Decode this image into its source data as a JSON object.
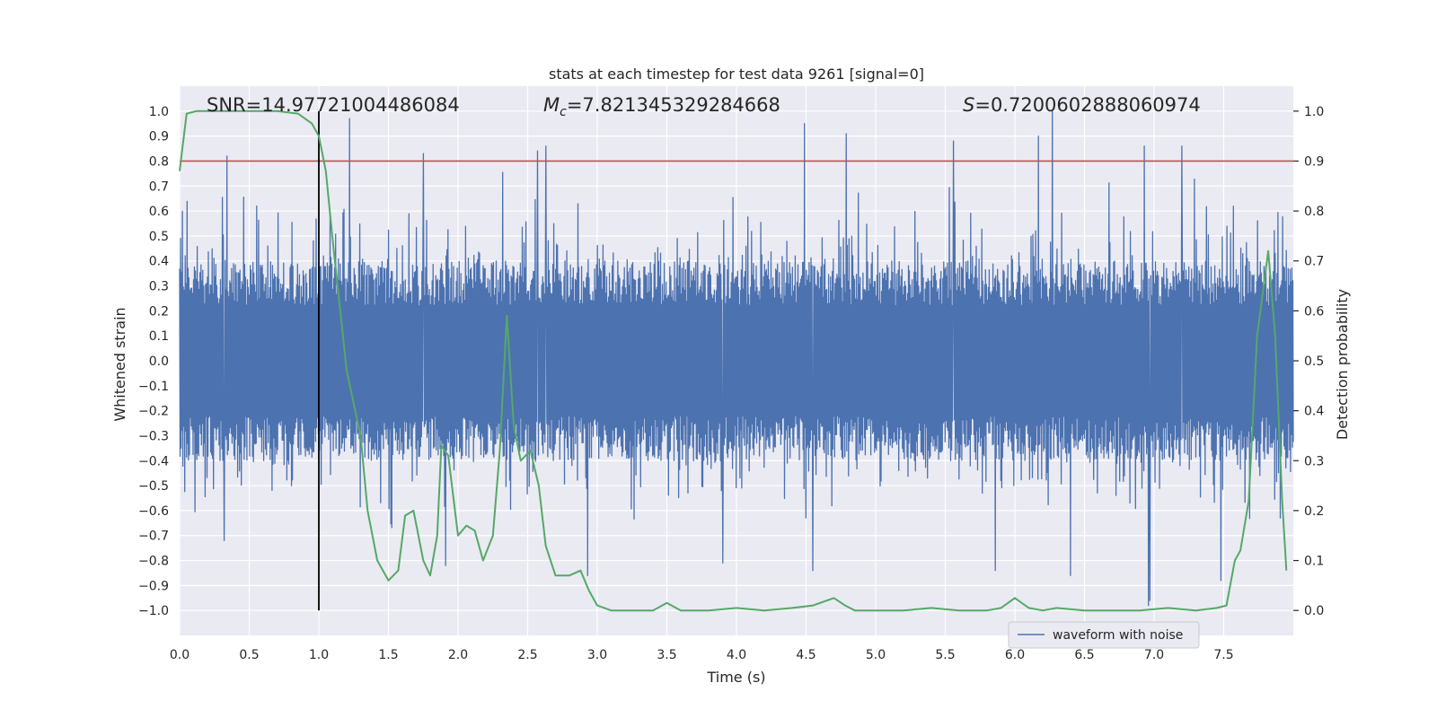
{
  "chart_data": {
    "type": "line",
    "title": "stats at each timestep for test data 9261 [signal=0]",
    "xlabel": "Time (s)",
    "ylabel_left": "Whitened strain",
    "ylabel_right": "Detection probability",
    "xlim": [
      0.0,
      8.0
    ],
    "ylim_left": [
      -1.1,
      1.1
    ],
    "ylim_right": [
      -0.05,
      1.05
    ],
    "x_ticks": [
      0.0,
      0.5,
      1.0,
      1.5,
      2.0,
      2.5,
      3.0,
      3.5,
      4.0,
      4.5,
      5.0,
      5.5,
      6.0,
      6.5,
      7.0,
      7.5
    ],
    "x_tick_labels": [
      "0.0",
      "0.5",
      "1.0",
      "1.5",
      "2.0",
      "2.5",
      "3.0",
      "3.5",
      "4.0",
      "4.5",
      "5.0",
      "5.5",
      "6.0",
      "6.5",
      "7.0",
      "7.5"
    ],
    "y_left_ticks": [
      1.0,
      0.9,
      0.8,
      0.7,
      0.6,
      0.5,
      0.4,
      0.3,
      0.2,
      0.1,
      0.0,
      -0.1,
      -0.2,
      -0.3,
      -0.4,
      -0.5,
      -0.6,
      -0.7,
      -0.8,
      -0.9,
      -1.0
    ],
    "y_left_tick_labels": [
      "1.0",
      "0.9",
      "0.8",
      "0.7",
      "0.6",
      "0.5",
      "0.4",
      "0.3",
      "0.2",
      "0.1",
      "0.0",
      "−0.1",
      "−0.2",
      "−0.3",
      "−0.4",
      "−0.5",
      "−0.6",
      "−0.7",
      "−0.8",
      "−0.9",
      "−1.0"
    ],
    "y_right_ticks": [
      1.0,
      0.9,
      0.8,
      0.7,
      0.6,
      0.5,
      0.4,
      0.3,
      0.2,
      0.1,
      0.0
    ],
    "y_right_tick_labels": [
      "1.0",
      "0.9",
      "0.8",
      "0.7",
      "0.6",
      "0.5",
      "0.4",
      "0.3",
      "0.2",
      "0.1",
      "0.0"
    ],
    "annotations": {
      "snr": "SNR=14.97721004486084",
      "mc_symbol": "M",
      "mc_sub": "c",
      "mc_value": "=7.821345329284668",
      "s_symbol": "S",
      "s_value": "=0.7200602888060974"
    },
    "legend": {
      "entries": [
        "waveform with noise"
      ],
      "placement": "lower-right"
    },
    "threshold_line": {
      "axis": "left",
      "y": 0.8,
      "color": "#c44e52"
    },
    "marker_line": {
      "x": 1.0,
      "y_range": [
        -1.0,
        1.0
      ],
      "color": "#000000"
    },
    "waveform": {
      "name": "waveform with noise",
      "color": "#4c72b0",
      "n_points": 2400,
      "band_amplitude": 0.4,
      "extreme_spikes": [
        {
          "x": 0.34,
          "y": 0.82
        },
        {
          "x": 1.22,
          "y": 0.97
        },
        {
          "x": 1.75,
          "y": 0.83
        },
        {
          "x": 2.57,
          "y": 0.84
        },
        {
          "x": 2.63,
          "y": 0.86
        },
        {
          "x": 4.49,
          "y": 0.95
        },
        {
          "x": 4.79,
          "y": 0.91
        },
        {
          "x": 5.56,
          "y": 0.88
        },
        {
          "x": 6.17,
          "y": 0.9
        },
        {
          "x": 6.27,
          "y": 1.0
        },
        {
          "x": 6.93,
          "y": 0.86
        },
        {
          "x": 7.2,
          "y": 0.86
        },
        {
          "x": 6.96,
          "y": -0.98
        },
        {
          "x": 6.97,
          "y": -0.96
        },
        {
          "x": 2.93,
          "y": -0.86
        },
        {
          "x": 5.86,
          "y": -0.84
        },
        {
          "x": 6.4,
          "y": -0.86
        },
        {
          "x": 7.48,
          "y": -0.88
        },
        {
          "x": 1.91,
          "y": -0.82
        },
        {
          "x": 3.9,
          "y": -0.81
        },
        {
          "x": 0.32,
          "y": -0.72
        },
        {
          "x": 4.55,
          "y": -0.84
        }
      ]
    },
    "detection_probability": {
      "name": "detection probability",
      "color": "#55a868",
      "axis": "right",
      "x": [
        0.0,
        0.05,
        0.12,
        0.3,
        0.5,
        0.7,
        0.85,
        0.95,
        1.0,
        1.05,
        1.1,
        1.2,
        1.3,
        1.35,
        1.42,
        1.5,
        1.57,
        1.62,
        1.68,
        1.75,
        1.8,
        1.85,
        1.88,
        1.93,
        2.0,
        2.06,
        2.12,
        2.18,
        2.25,
        2.3,
        2.35,
        2.4,
        2.45,
        2.52,
        2.58,
        2.63,
        2.7,
        2.8,
        2.88,
        2.94,
        3.0,
        3.1,
        3.3,
        3.4,
        3.5,
        3.6,
        3.8,
        4.0,
        4.2,
        4.4,
        4.55,
        4.7,
        4.78,
        4.85,
        5.0,
        5.2,
        5.4,
        5.6,
        5.8,
        5.9,
        6.0,
        6.1,
        6.2,
        6.3,
        6.5,
        6.7,
        6.9,
        7.1,
        7.3,
        7.45,
        7.52,
        7.58,
        7.62,
        7.68,
        7.74,
        7.82,
        7.87,
        7.92,
        7.95
      ],
      "y": [
        0.88,
        0.995,
        1.0,
        1.0,
        1.0,
        1.0,
        0.995,
        0.975,
        0.95,
        0.88,
        0.74,
        0.48,
        0.35,
        0.2,
        0.1,
        0.06,
        0.08,
        0.19,
        0.2,
        0.1,
        0.07,
        0.15,
        0.33,
        0.31,
        0.15,
        0.17,
        0.16,
        0.1,
        0.15,
        0.32,
        0.59,
        0.37,
        0.3,
        0.32,
        0.25,
        0.13,
        0.07,
        0.07,
        0.08,
        0.04,
        0.01,
        0.0,
        0.0,
        0.0,
        0.015,
        0.0,
        0.0,
        0.005,
        0.0,
        0.005,
        0.01,
        0.025,
        0.01,
        0.0,
        0.0,
        0.0,
        0.005,
        0.0,
        0.0,
        0.005,
        0.025,
        0.005,
        0.0,
        0.005,
        0.0,
        0.0,
        0.0,
        0.005,
        0.0,
        0.005,
        0.01,
        0.1,
        0.12,
        0.22,
        0.55,
        0.72,
        0.55,
        0.22,
        0.08
      ]
    }
  }
}
